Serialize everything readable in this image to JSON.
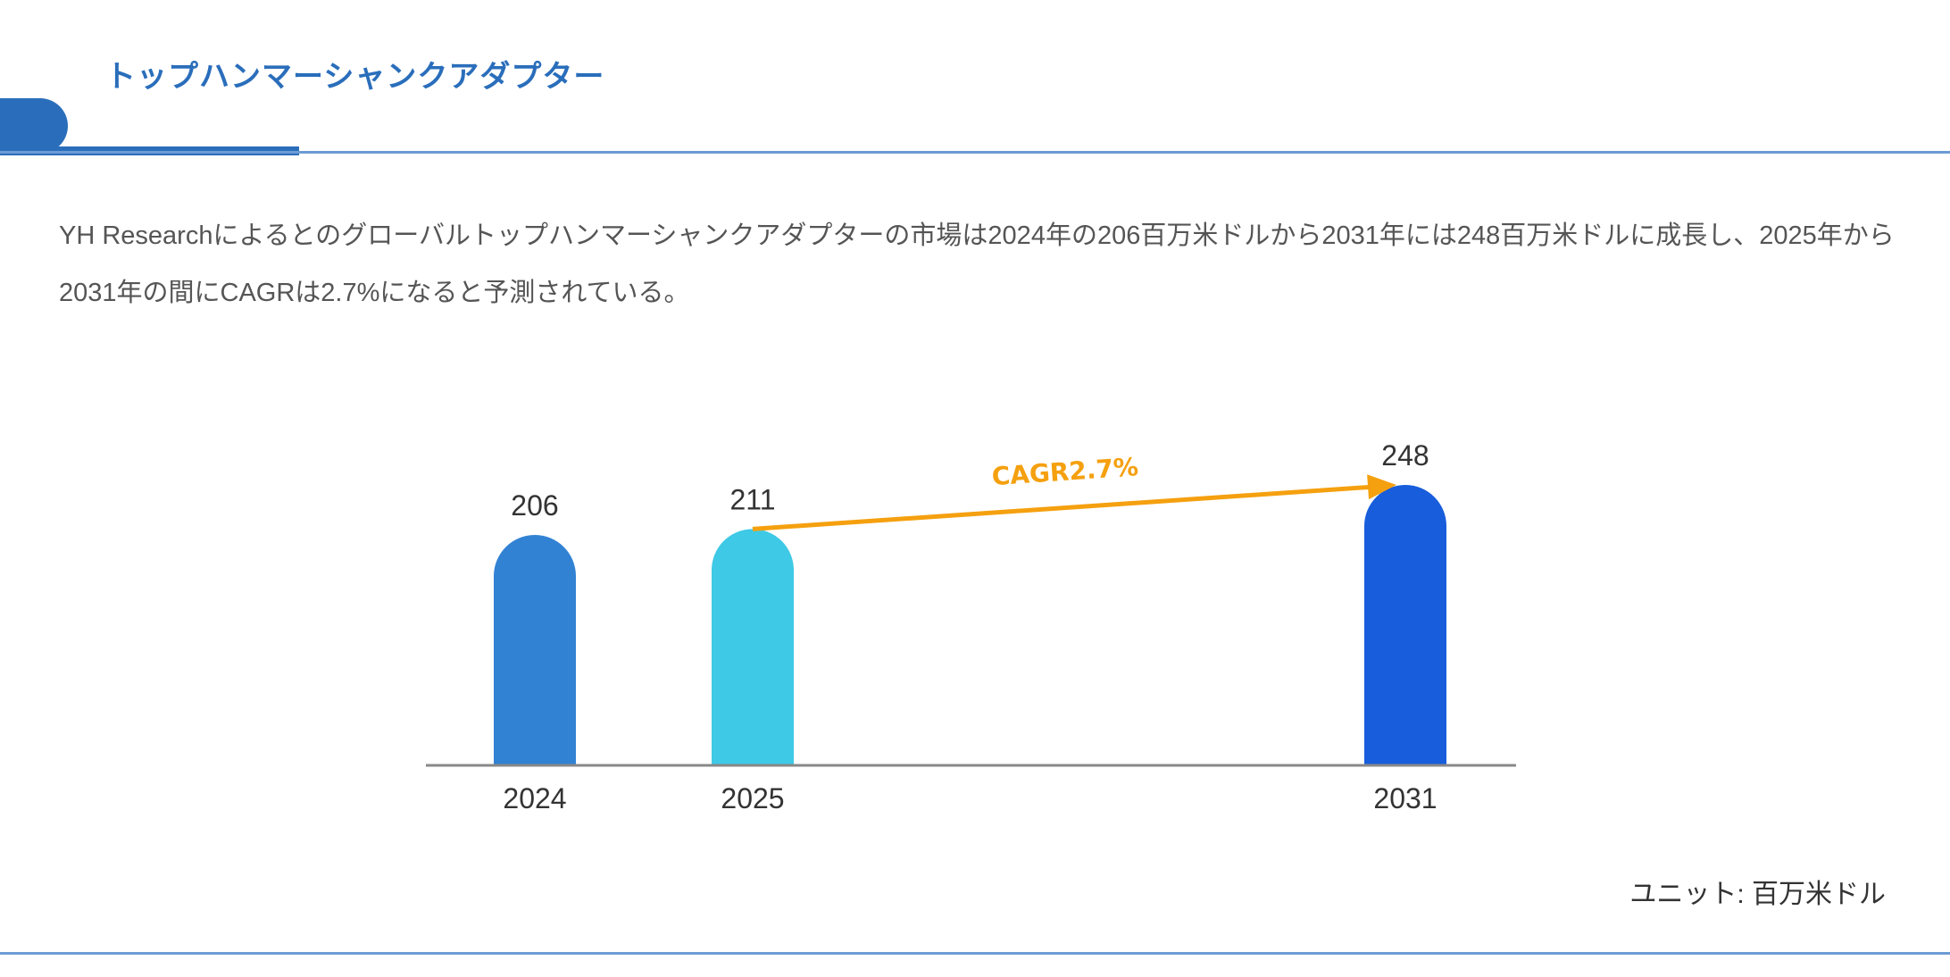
{
  "header": {
    "title": "トップハンマーシャンクアダプター"
  },
  "description": "YH Researchによるとのグローバルトップハンマーシャンクアダプターの市場は2024年の206百万米ドルから2031年には248百万米ドルに成長し、2025年から2031年の間にCAGRは2.7%になると予測されている。",
  "unit_label": "ユニット: 百万米ドル",
  "chart_data": {
    "type": "bar",
    "categories": [
      "2024",
      "2025",
      "2031"
    ],
    "values": [
      206,
      211,
      248
    ],
    "colors": [
      "#3282d4",
      "#3ec9e6",
      "#175ddc"
    ],
    "annotation": {
      "text": "CAGR2.7%",
      "from": "2025",
      "to": "2031",
      "color": "#f5a00f"
    },
    "unit": "百万米ドル",
    "grid": false
  }
}
